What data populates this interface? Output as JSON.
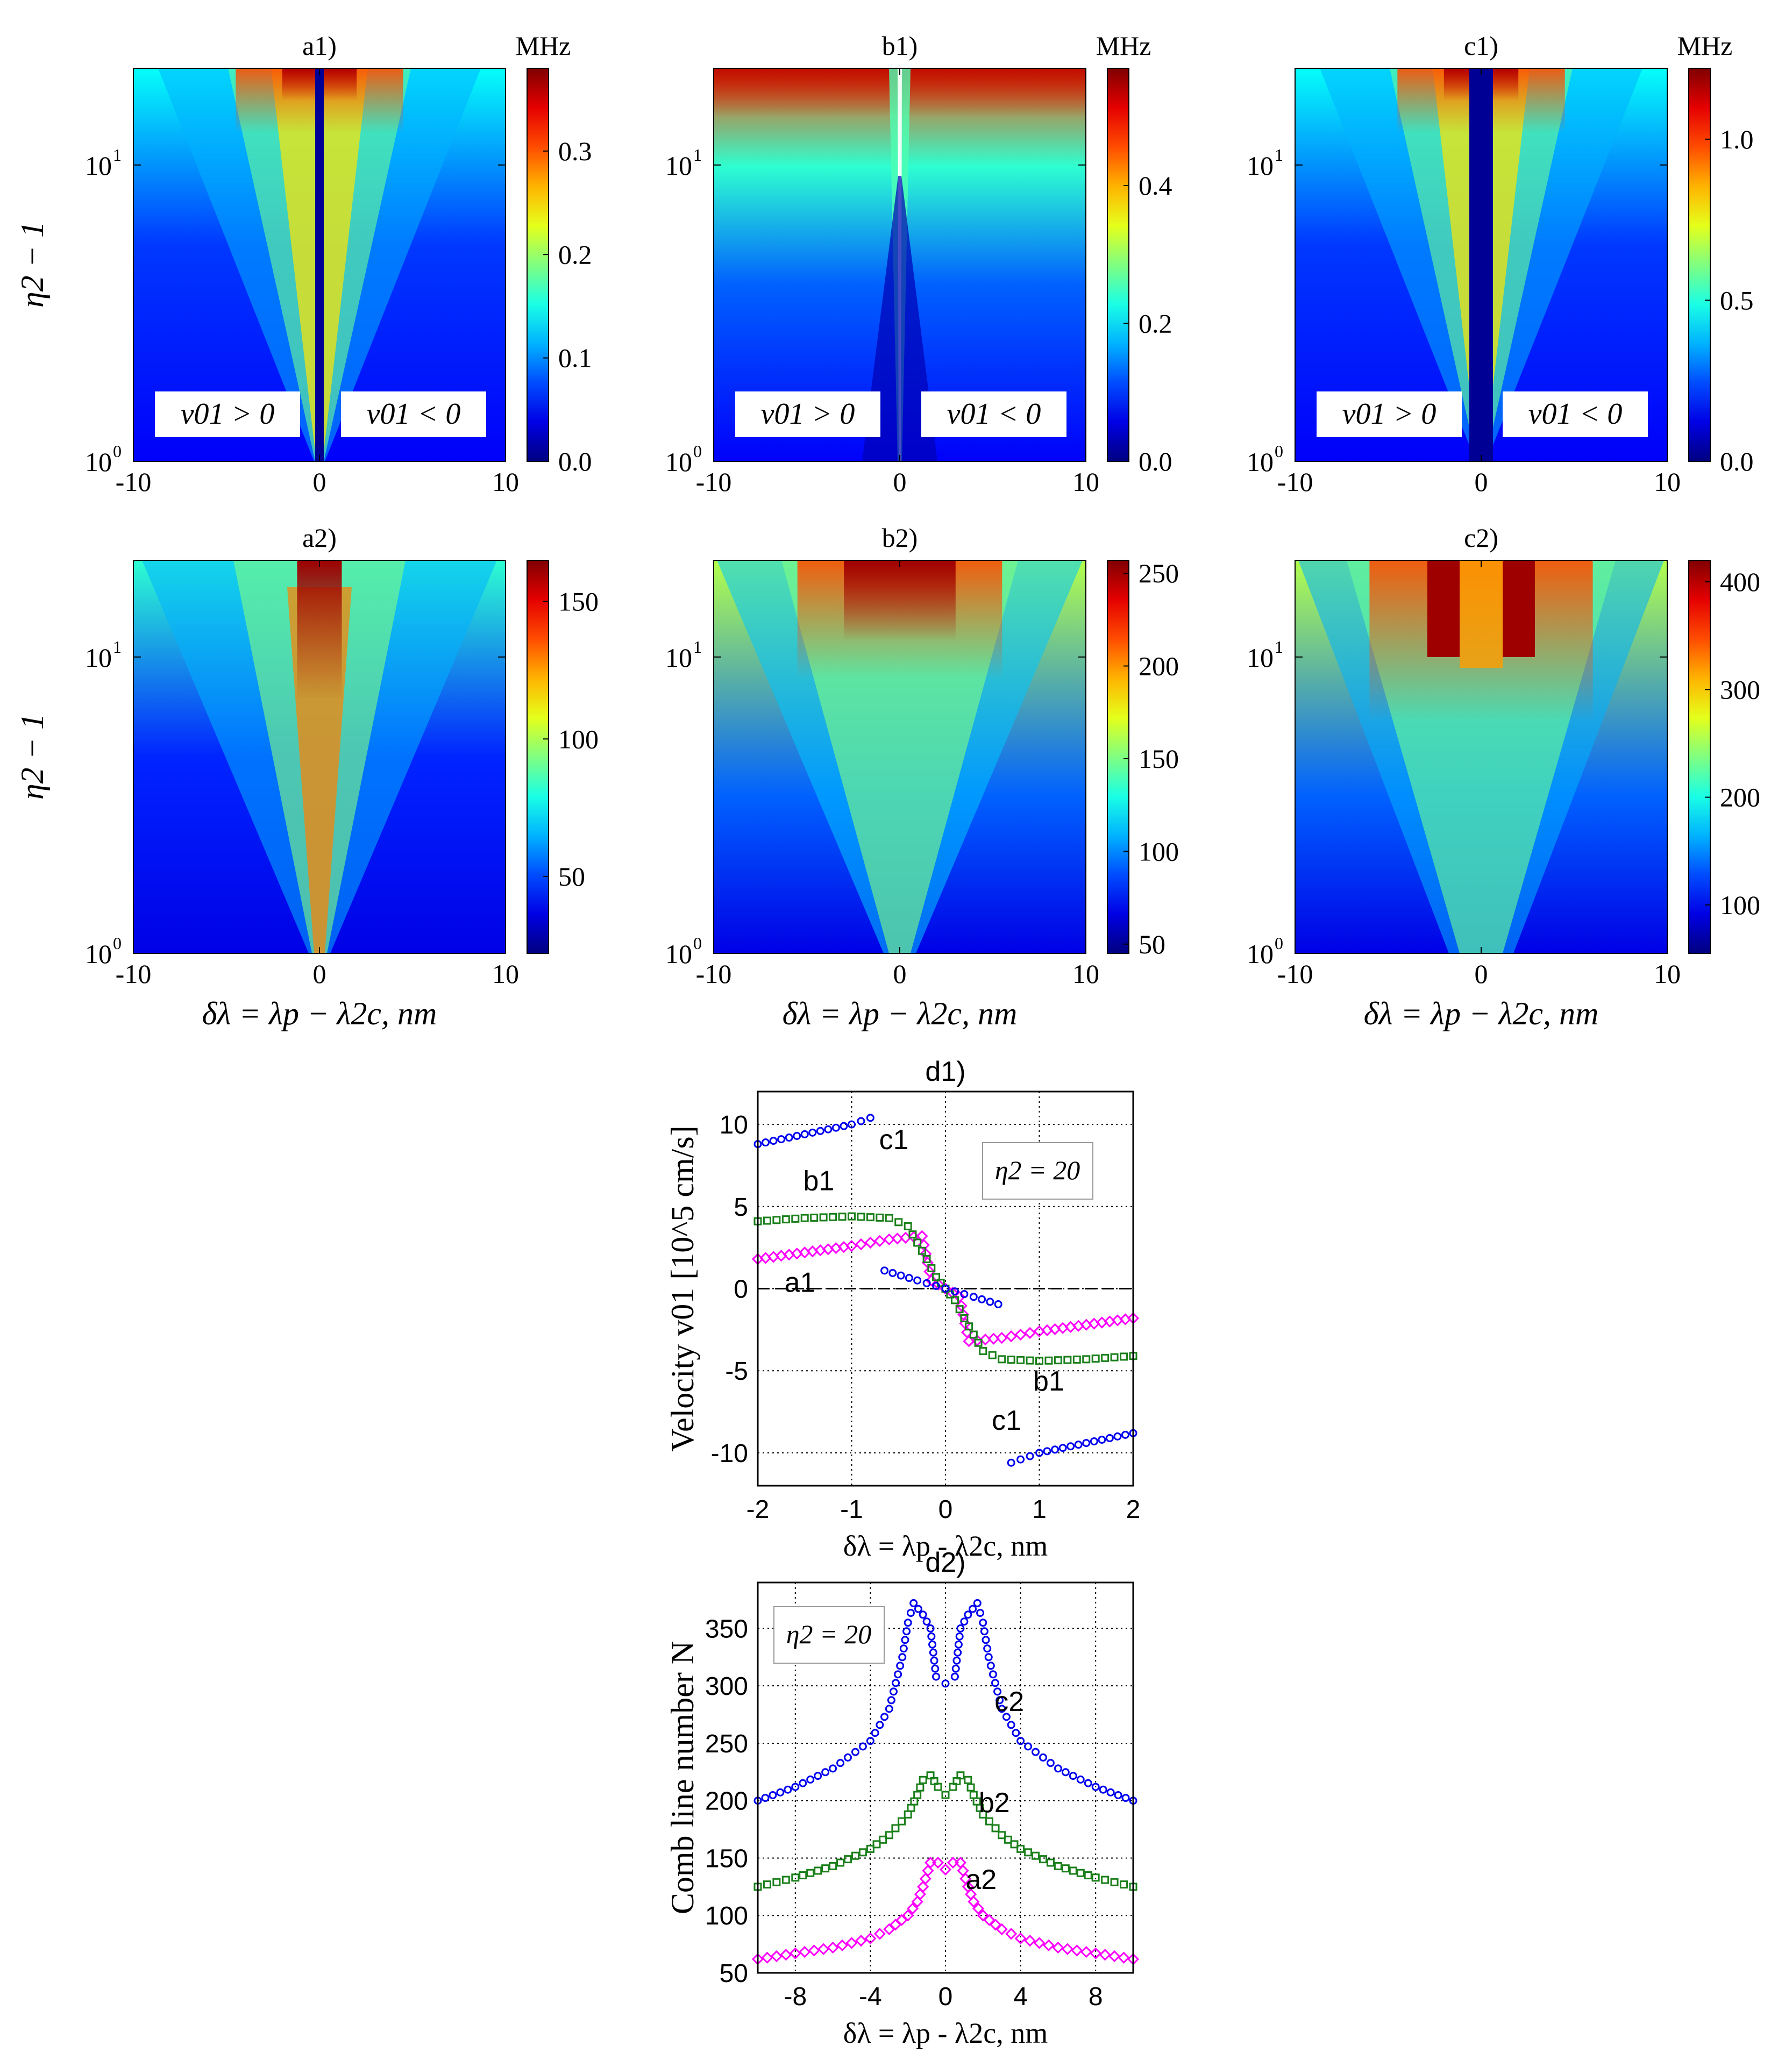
{
  "figure": {
    "maps": [
      {
        "id": "a1",
        "title": "a1)",
        "unit": "MHz",
        "cbar_ticks": [
          "0.0",
          "0.1",
          "0.2",
          "0.3"
        ],
        "cbar_values": [
          0,
          0.1,
          0.2,
          0.3
        ],
        "cbar_max": 0.38,
        "regions": [
          "v01 > 0",
          "v01 < 0"
        ],
        "pattern": "notch"
      },
      {
        "id": "b1",
        "title": "b1)",
        "unit": "MHz",
        "cbar_ticks": [
          "0.0",
          "0.2",
          "0.4"
        ],
        "cbar_values": [
          0,
          0.2,
          0.4
        ],
        "cbar_max": 0.57,
        "regions": [
          "v01 > 0",
          "v01 < 0"
        ],
        "pattern": "top"
      },
      {
        "id": "c1",
        "title": "c1)",
        "unit": "MHz",
        "cbar_ticks": [
          "0.0",
          "0.5",
          "1.0"
        ],
        "cbar_values": [
          0,
          0.5,
          1.0
        ],
        "cbar_max": 1.22,
        "regions": [
          "v01 > 0",
          "v01 < 0"
        ],
        "pattern": "wide-notch"
      },
      {
        "id": "a2",
        "title": "a2)",
        "unit": "",
        "cbar_ticks": [
          "50",
          "100",
          "150"
        ],
        "cbar_values": [
          50,
          100,
          150
        ],
        "cbar_min": 22,
        "cbar_max": 165,
        "regions": [],
        "pattern": "peak"
      },
      {
        "id": "b2",
        "title": "b2)",
        "unit": "",
        "cbar_ticks": [
          "50",
          "100",
          "150",
          "200",
          "250"
        ],
        "cbar_values": [
          50,
          100,
          150,
          200,
          250
        ],
        "cbar_min": 45,
        "cbar_max": 257,
        "regions": [],
        "pattern": "wide-peak"
      },
      {
        "id": "c2",
        "title": "c2)",
        "unit": "",
        "cbar_ticks": [
          "100",
          "200",
          "300",
          "400"
        ],
        "cbar_values": [
          100,
          200,
          300,
          400
        ],
        "cbar_min": 55,
        "cbar_max": 420,
        "regions": [],
        "pattern": "double-peak"
      }
    ],
    "map_x_ticks": [
      "-10",
      "0",
      "10"
    ],
    "map_x_label": "δλ = λp − λ2c, nm",
    "map_y_label": "η2 − 1",
    "map_y_ticks": [
      "10",
      "10"
    ],
    "map_y_exps": [
      "0",
      "1"
    ]
  },
  "chart_data": [
    {
      "type": "scatter",
      "title": "d1)",
      "xlabel": "δλ = λp - λ2c, nm",
      "ylabel": "Velocity v01 [10^5 cm/s]",
      "xlim": [
        -2,
        2
      ],
      "ylim": [
        -12,
        12
      ],
      "x_ticks": [
        "-2",
        "-1",
        "0",
        "1",
        "2"
      ],
      "y_ticks": [
        "-10",
        "-5",
        "0",
        "5",
        "10"
      ],
      "annotation": "η2 = 20",
      "series": [
        {
          "name": "a1",
          "color": "#ff00ff",
          "marker": "diamond",
          "points": [
            [
              -2.0,
              1.8
            ],
            [
              -1.5,
              2.2
            ],
            [
              -1.0,
              2.6
            ],
            [
              -0.6,
              3.0
            ],
            [
              -0.25,
              3.2
            ],
            [
              -0.15,
              0.5
            ],
            [
              0.0,
              0.0
            ],
            [
              0.15,
              -0.5
            ],
            [
              0.25,
              -3.2
            ],
            [
              0.6,
              -3.0
            ],
            [
              1.0,
              -2.6
            ],
            [
              1.5,
              -2.2
            ],
            [
              2.0,
              -1.8
            ]
          ]
        },
        {
          "name": "b1",
          "color": "#1a7f1a",
          "marker": "square",
          "points": [
            [
              -2.0,
              4.1
            ],
            [
              -1.5,
              4.3
            ],
            [
              -1.0,
              4.4
            ],
            [
              -0.6,
              4.3
            ],
            [
              -0.4,
              3.8
            ],
            [
              -0.3,
              2.8
            ],
            [
              -0.2,
              1.8
            ],
            [
              -0.1,
              0.7
            ],
            [
              0.0,
              0.0
            ],
            [
              0.1,
              -0.7
            ],
            [
              0.2,
              -1.8
            ],
            [
              0.3,
              -2.8
            ],
            [
              0.4,
              -3.8
            ],
            [
              0.6,
              -4.3
            ],
            [
              1.0,
              -4.4
            ],
            [
              1.5,
              -4.3
            ],
            [
              2.0,
              -4.1
            ]
          ]
        },
        {
          "name": "c1",
          "color": "#0000ee",
          "marker": "circle",
          "points": [
            [
              -2.0,
              8.8
            ],
            [
              -1.5,
              9.4
            ],
            [
              -1.0,
              10.0
            ],
            [
              -0.7,
              10.6
            ],
            [
              -0.65,
              1.1
            ],
            [
              -0.3,
              0.5
            ],
            [
              0.0,
              0.0
            ],
            [
              0.3,
              -0.5
            ],
            [
              0.65,
              -1.1
            ],
            [
              0.7,
              -10.6
            ],
            [
              1.0,
              -10.0
            ],
            [
              1.5,
              -9.4
            ],
            [
              2.0,
              -8.8
            ]
          ]
        }
      ],
      "labels": [
        {
          "text": "c1",
          "x": -0.55,
          "y": 8.5
        },
        {
          "text": "b1",
          "x": -1.35,
          "y": 6.0
        },
        {
          "text": "a1",
          "x": -1.55,
          "y": -0.2
        },
        {
          "text": "b1",
          "x": 1.1,
          "y": -6.2
        },
        {
          "text": "c1",
          "x": 0.65,
          "y": -8.6
        }
      ]
    },
    {
      "type": "scatter",
      "title": "d2)",
      "xlabel": "δλ = λp - λ2c, nm",
      "ylabel": "Comb line number N",
      "xlim": [
        -10,
        10
      ],
      "ylim": [
        50,
        390
      ],
      "x_ticks": [
        "-8",
        "-4",
        "0",
        "4",
        "8"
      ],
      "y_ticks": [
        "50",
        "100",
        "150",
        "200",
        "250",
        "300",
        "350"
      ],
      "annotation": "η2 = 20",
      "series": [
        {
          "name": "a2",
          "color": "#ff00ff",
          "marker": "diamond",
          "points": [
            [
              -10,
              62
            ],
            [
              -8,
              67
            ],
            [
              -6,
              72
            ],
            [
              -4,
              80
            ],
            [
              -3,
              88
            ],
            [
              -2,
              100
            ],
            [
              -1.5,
              112
            ],
            [
              -1.2,
              125
            ],
            [
              -0.8,
              146
            ],
            [
              -0.4,
              146
            ],
            [
              0,
              140
            ],
            [
              0.4,
              146
            ],
            [
              0.8,
              146
            ],
            [
              1.2,
              125
            ],
            [
              1.5,
              112
            ],
            [
              2,
              100
            ],
            [
              3,
              88
            ],
            [
              4,
              80
            ],
            [
              6,
              72
            ],
            [
              8,
              67
            ],
            [
              10,
              62
            ]
          ]
        },
        {
          "name": "b2",
          "color": "#1a7f1a",
          "marker": "square",
          "points": [
            [
              -10,
              125
            ],
            [
              -8,
              133
            ],
            [
              -6,
              143
            ],
            [
              -4,
              158
            ],
            [
              -3,
              170
            ],
            [
              -2,
              188
            ],
            [
              -1.5,
              205
            ],
            [
              -1.2,
              218
            ],
            [
              -0.8,
              222
            ],
            [
              -0.4,
              212
            ],
            [
              0,
              205
            ],
            [
              0.4,
              212
            ],
            [
              0.8,
              222
            ],
            [
              1.2,
              218
            ],
            [
              1.5,
              205
            ],
            [
              2,
              188
            ],
            [
              3,
              170
            ],
            [
              4,
              158
            ],
            [
              6,
              143
            ],
            [
              8,
              133
            ],
            [
              10,
              125
            ]
          ]
        },
        {
          "name": "c2",
          "color": "#0000ee",
          "marker": "circle",
          "points": [
            [
              -10,
              200
            ],
            [
              -8,
              212
            ],
            [
              -6,
              228
            ],
            [
              -4,
              252
            ],
            [
              -3,
              280
            ],
            [
              -2.3,
              325
            ],
            [
              -2.0,
              355
            ],
            [
              -1.7,
              372
            ],
            [
              -1.2,
              362
            ],
            [
              -0.8,
              350
            ],
            [
              -0.5,
              308
            ],
            [
              0,
              302
            ],
            [
              0.5,
              308
            ],
            [
              0.8,
              350
            ],
            [
              1.2,
              362
            ],
            [
              1.7,
              372
            ],
            [
              2.0,
              355
            ],
            [
              2.3,
              325
            ],
            [
              3,
              280
            ],
            [
              4,
              252
            ],
            [
              6,
              228
            ],
            [
              8,
              212
            ],
            [
              10,
              200
            ]
          ]
        }
      ],
      "labels": [
        {
          "text": "c2",
          "x": 3.4,
          "y": 278
        },
        {
          "text": "b2",
          "x": 2.6,
          "y": 190
        },
        {
          "text": "a2",
          "x": 1.9,
          "y": 123
        }
      ]
    }
  ]
}
